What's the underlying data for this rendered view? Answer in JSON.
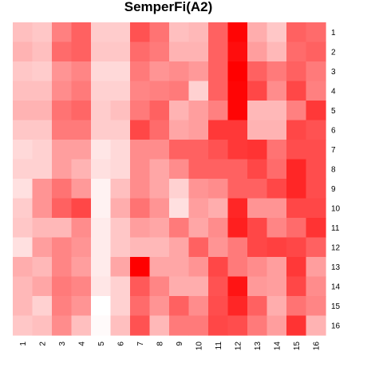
{
  "chart_data": {
    "type": "heatmap",
    "title": "SemperFi(A2)",
    "x_labels": [
      "1",
      "2",
      "3",
      "4",
      "5",
      "6",
      "7",
      "8",
      "9",
      "10",
      "11",
      "12",
      "13",
      "14",
      "15",
      "16"
    ],
    "y_labels": [
      "1",
      "2",
      "3",
      "4",
      "5",
      "6",
      "7",
      "8",
      "9",
      "10",
      "11",
      "12",
      "13",
      "14",
      "15",
      "16"
    ],
    "scale": {
      "min": 0,
      "max": 1,
      "low_color": "#ffffff",
      "high_color": "#ff0000"
    },
    "values": [
      [
        0.25,
        0.22,
        0.5,
        0.62,
        0.2,
        0.2,
        0.68,
        0.55,
        0.25,
        0.28,
        0.62,
        0.98,
        0.32,
        0.22,
        0.62,
        0.58
      ],
      [
        0.3,
        0.25,
        0.58,
        0.62,
        0.22,
        0.22,
        0.58,
        0.52,
        0.3,
        0.3,
        0.62,
        0.95,
        0.38,
        0.28,
        0.58,
        0.62
      ],
      [
        0.22,
        0.2,
        0.42,
        0.48,
        0.15,
        0.15,
        0.52,
        0.42,
        0.45,
        0.4,
        0.62,
        1.0,
        0.62,
        0.52,
        0.62,
        0.52
      ],
      [
        0.25,
        0.25,
        0.45,
        0.52,
        0.18,
        0.18,
        0.48,
        0.5,
        0.52,
        0.18,
        0.62,
        0.98,
        0.72,
        0.45,
        0.72,
        0.5
      ],
      [
        0.3,
        0.3,
        0.55,
        0.6,
        0.2,
        0.25,
        0.52,
        0.62,
        0.3,
        0.38,
        0.5,
        0.98,
        0.28,
        0.28,
        0.5,
        0.78
      ],
      [
        0.22,
        0.22,
        0.52,
        0.52,
        0.2,
        0.2,
        0.72,
        0.58,
        0.35,
        0.38,
        0.78,
        0.78,
        0.3,
        0.3,
        0.72,
        0.68
      ],
      [
        0.15,
        0.18,
        0.38,
        0.38,
        0.1,
        0.15,
        0.45,
        0.45,
        0.62,
        0.62,
        0.68,
        0.78,
        0.8,
        0.55,
        0.7,
        0.7
      ],
      [
        0.18,
        0.18,
        0.38,
        0.3,
        0.12,
        0.15,
        0.45,
        0.35,
        0.45,
        0.62,
        0.62,
        0.62,
        0.72,
        0.58,
        0.85,
        0.7
      ],
      [
        0.12,
        0.42,
        0.55,
        0.4,
        0.05,
        0.25,
        0.45,
        0.35,
        0.18,
        0.42,
        0.45,
        0.62,
        0.62,
        0.72,
        0.85,
        0.7
      ],
      [
        0.2,
        0.42,
        0.62,
        0.72,
        0.05,
        0.32,
        0.55,
        0.42,
        0.12,
        0.38,
        0.32,
        0.85,
        0.42,
        0.42,
        0.72,
        0.72
      ],
      [
        0.22,
        0.28,
        0.28,
        0.45,
        0.08,
        0.22,
        0.38,
        0.35,
        0.52,
        0.35,
        0.45,
        0.88,
        0.72,
        0.48,
        0.58,
        0.8
      ],
      [
        0.12,
        0.38,
        0.48,
        0.42,
        0.08,
        0.22,
        0.28,
        0.28,
        0.35,
        0.62,
        0.42,
        0.52,
        0.72,
        0.75,
        0.72,
        0.62
      ],
      [
        0.32,
        0.28,
        0.48,
        0.38,
        0.08,
        0.35,
        1.0,
        0.35,
        0.35,
        0.42,
        0.72,
        0.52,
        0.45,
        0.38,
        0.78,
        0.38
      ],
      [
        0.28,
        0.35,
        0.52,
        0.48,
        0.1,
        0.18,
        0.65,
        0.48,
        0.32,
        0.32,
        0.68,
        0.92,
        0.4,
        0.38,
        0.72,
        0.45
      ],
      [
        0.28,
        0.18,
        0.5,
        0.42,
        0.0,
        0.18,
        0.58,
        0.42,
        0.62,
        0.45,
        0.7,
        0.85,
        0.62,
        0.32,
        0.55,
        0.48
      ],
      [
        0.22,
        0.25,
        0.45,
        0.25,
        0.02,
        0.25,
        0.68,
        0.28,
        0.52,
        0.52,
        0.72,
        0.7,
        0.52,
        0.38,
        0.8,
        0.3
      ]
    ]
  }
}
